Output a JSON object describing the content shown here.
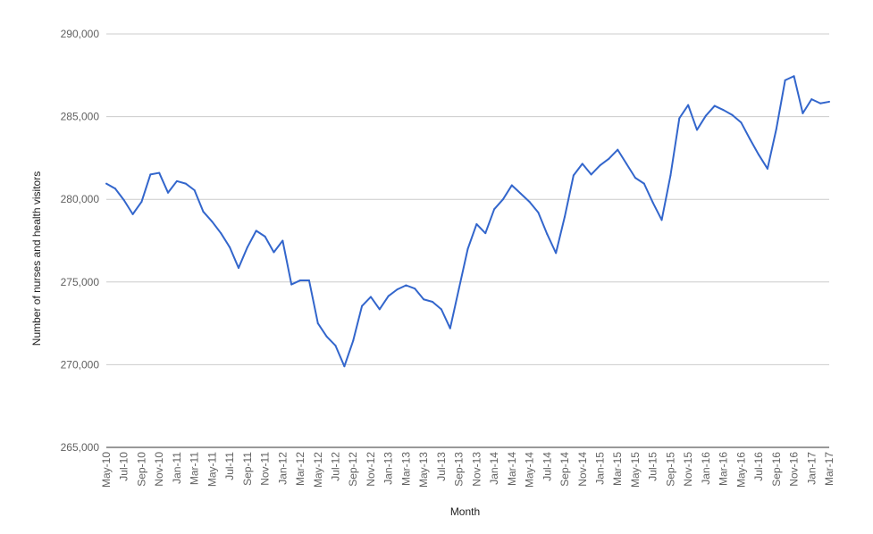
{
  "chart_data": {
    "type": "line",
    "title": "",
    "xlabel": "Month",
    "ylabel": "Number of nurses and health visitors",
    "ylim": [
      265000,
      290000
    ],
    "yticks": [
      "265,000",
      "270,000",
      "275,000",
      "280,000",
      "285,000",
      "290,000"
    ],
    "ytick_values": [
      265000,
      270000,
      275000,
      280000,
      285000,
      290000
    ],
    "grid": true,
    "legend": "none",
    "line_color": "#3366cc",
    "grid_color": "#cccccc",
    "x": [
      "May-10",
      "Jun-10",
      "Jul-10",
      "Aug-10",
      "Sep-10",
      "Oct-10",
      "Nov-10",
      "Dec-10",
      "Jan-11",
      "Feb-11",
      "Mar-11",
      "Apr-11",
      "May-11",
      "Jun-11",
      "Jul-11",
      "Aug-11",
      "Sep-11",
      "Oct-11",
      "Nov-11",
      "Dec-11",
      "Jan-12",
      "Feb-12",
      "Mar-12",
      "Apr-12",
      "May-12",
      "Jun-12",
      "Jul-12",
      "Aug-12",
      "Sep-12",
      "Oct-12",
      "Nov-12",
      "Dec-12",
      "Jan-13",
      "Feb-13",
      "Mar-13",
      "Apr-13",
      "May-13",
      "Jun-13",
      "Jul-13",
      "Aug-13",
      "Sep-13",
      "Oct-13",
      "Nov-13",
      "Dec-13",
      "Jan-14",
      "Feb-14",
      "Mar-14",
      "Apr-14",
      "May-14",
      "Jun-14",
      "Jul-14",
      "Aug-14",
      "Sep-14",
      "Oct-14",
      "Nov-14",
      "Dec-14",
      "Jan-15",
      "Feb-15",
      "Mar-15",
      "Apr-15",
      "May-15",
      "Jun-15",
      "Jul-15",
      "Aug-15",
      "Sep-15",
      "Oct-15",
      "Nov-15",
      "Dec-15",
      "Jan-16",
      "Feb-16",
      "Mar-16",
      "Apr-16",
      "May-16",
      "Jun-16",
      "Jul-16",
      "Aug-16",
      "Sep-16",
      "Oct-16",
      "Nov-16",
      "Dec-16",
      "Jan-17",
      "Feb-17",
      "Mar-17"
    ],
    "x_tick_labels": [
      "May-10",
      "Jul-10",
      "Sep-10",
      "Nov-10",
      "Jan-11",
      "Mar-11",
      "May-11",
      "Jul-11",
      "Sep-11",
      "Nov-11",
      "Jan-12",
      "Mar-12",
      "May-12",
      "Jul-12",
      "Sep-12",
      "Nov-12",
      "Jan-13",
      "Mar-13",
      "May-13",
      "Jul-13",
      "Sep-13",
      "Nov-13",
      "Jan-14",
      "Mar-14",
      "May-14",
      "Jul-14",
      "Sep-14",
      "Nov-14",
      "Jan-15",
      "Mar-15",
      "May-15",
      "Jul-15",
      "Sep-15",
      "Nov-15",
      "Jan-16",
      "Mar-16",
      "May-16",
      "Jul-16",
      "Sep-16",
      "Nov-16",
      "Jan-17",
      "Mar-17"
    ],
    "series": [
      {
        "values": [
          280950,
          280650,
          279950,
          279100,
          279850,
          281500,
          281600,
          280400,
          281100,
          280950,
          280550,
          279250,
          278650,
          277950,
          277100,
          275850,
          277100,
          278100,
          277750,
          276800,
          277500,
          274850,
          275100,
          275100,
          272500,
          271700,
          271150,
          269900,
          271450,
          273550,
          274100,
          273350,
          274150,
          274550,
          274800,
          274600,
          273950,
          273800,
          273350,
          272200,
          274600,
          277000,
          278500,
          277950,
          279400,
          280000,
          280850,
          280350,
          279850,
          279200,
          277900,
          276750,
          278950,
          281450,
          282150,
          281500,
          282050,
          282450,
          283000,
          282150,
          281300,
          280950,
          279800,
          278750,
          281450,
          284900,
          285700,
          284200,
          285050,
          285650,
          285400,
          285100,
          284650,
          283650,
          282700,
          281850,
          284250,
          287200,
          287450,
          285200,
          286050,
          285800,
          285900
        ]
      }
    ]
  }
}
